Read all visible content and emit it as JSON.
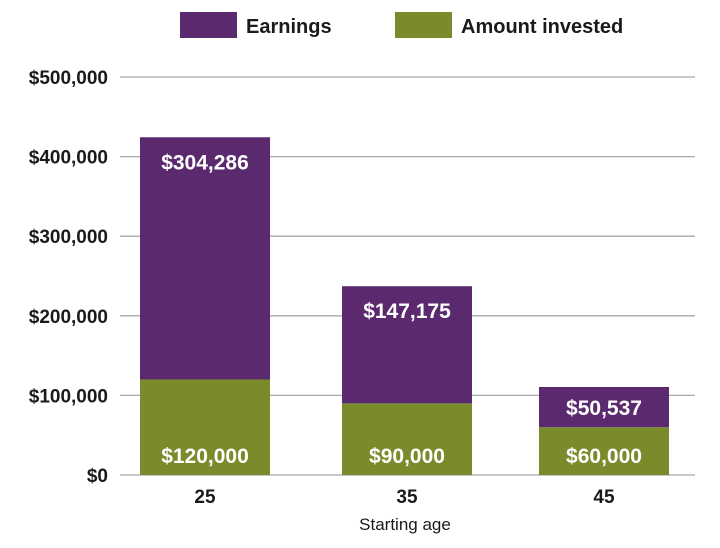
{
  "chart_data": {
    "type": "bar",
    "stacked": true,
    "title": "",
    "xlabel": "Starting age",
    "ylabel": "",
    "categories": [
      "25",
      "35",
      "45"
    ],
    "series": [
      {
        "name": "Amount invested",
        "values": [
          120000,
          90000,
          60000
        ],
        "color": "#7a8b2c",
        "labels": [
          "$120,000",
          "$90,000",
          "$60,000"
        ]
      },
      {
        "name": "Earnings",
        "values": [
          304286,
          147175,
          50537
        ],
        "color": "#5b2a6e",
        "labels": [
          "$304,286",
          "$147,175",
          "$50,537"
        ]
      }
    ],
    "legend": [
      {
        "name": "Earnings",
        "color": "#5b2a6e"
      },
      {
        "name": "Amount invested",
        "color": "#7a8b2c"
      }
    ],
    "legend_position": "top",
    "ylim": [
      0,
      500000
    ],
    "yticks": [
      {
        "value": 0,
        "label": "$0"
      },
      {
        "value": 100000,
        "label": "$100,000"
      },
      {
        "value": 200000,
        "label": "$200,000"
      },
      {
        "value": 300000,
        "label": "$300,000"
      },
      {
        "value": 400000,
        "label": "$400,000"
      },
      {
        "value": 500000,
        "label": "$500,000"
      }
    ],
    "grid": true
  }
}
